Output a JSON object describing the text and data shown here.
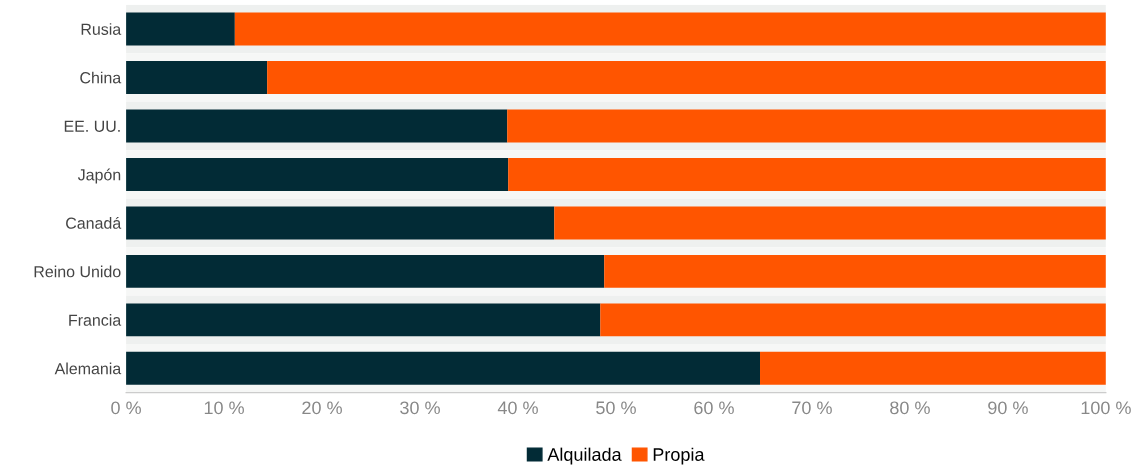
{
  "chart_data": {
    "type": "bar",
    "orientation": "horizontal",
    "stacked": true,
    "categories": [
      "Rusia",
      "China",
      "EE. UU.",
      "Japón",
      "Canadá",
      "Reino Unido",
      "Francia",
      "Alemania"
    ],
    "series": [
      {
        "name": "Alquilada",
        "color": "#022b36",
        "values": [
          11.1,
          14.4,
          38.9,
          39.0,
          43.7,
          48.8,
          48.4,
          64.7
        ]
      },
      {
        "name": "Propia",
        "color": "#ff5500",
        "values": [
          88.9,
          85.6,
          61.1,
          61.0,
          56.3,
          51.2,
          51.6,
          35.3
        ]
      }
    ],
    "xlim": [
      0,
      100
    ],
    "xticks": [
      {
        "value": 0,
        "label": "0 %"
      },
      {
        "value": 10,
        "label": "10 %"
      },
      {
        "value": 20,
        "label": "20 %"
      },
      {
        "value": 30,
        "label": "30 %"
      },
      {
        "value": 40,
        "label": "40 %"
      },
      {
        "value": 50,
        "label": "50 %"
      },
      {
        "value": 60,
        "label": "60 %"
      },
      {
        "value": 70,
        "label": "70 %"
      },
      {
        "value": 80,
        "label": "80 %"
      },
      {
        "value": 90,
        "label": "90 %"
      },
      {
        "value": 100,
        "label": "100 %"
      }
    ],
    "grid": false,
    "legend": "bottom"
  }
}
